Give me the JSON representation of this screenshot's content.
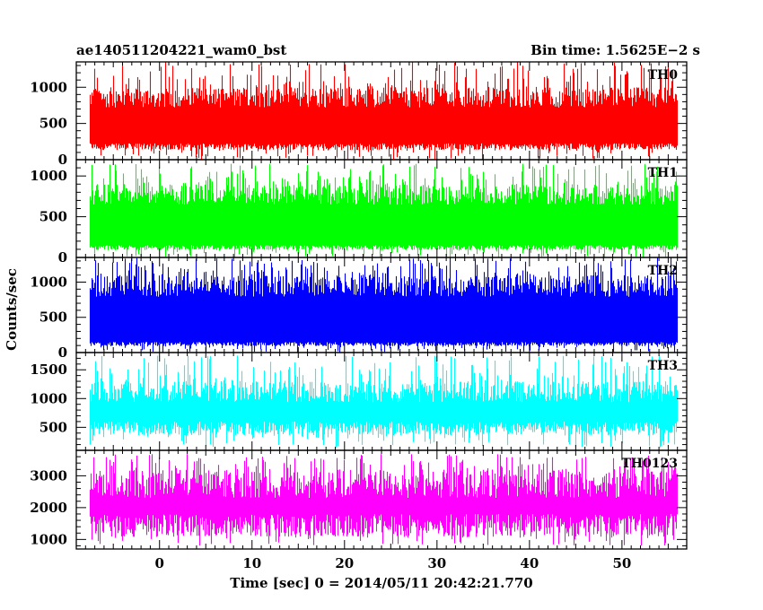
{
  "header": {
    "left_title": "ae140511204221_wam0_bst",
    "right_title": "Bin time: 1.5625E−2 s"
  },
  "axes": {
    "ylabel": "Counts/sec",
    "xlabel": "Time [sec] 0 = 2014/05/11 20:42:21.770"
  },
  "chart_data": {
    "type": "line",
    "title": "ae140511204221_wam0_bst",
    "subtitle": "Bin time: 1.5625E−2 s",
    "xlabel": "Time [sec] 0 = 2014/05/11 20:42:21.770",
    "ylabel": "Counts/sec",
    "xlim": [
      -9,
      57
    ],
    "x_data_range": [
      -7.5,
      56
    ],
    "x_ticks": [
      0,
      10,
      20,
      30,
      40,
      50
    ],
    "x_tick_labels": [
      "0",
      "10",
      "20",
      "30",
      "40",
      "50"
    ],
    "bin_time": 0.015625,
    "grid": false,
    "panels": [
      {
        "name": "TH0",
        "color": "#ff0000",
        "ylim": [
          0,
          1350
        ],
        "y_ticks": [
          0,
          500,
          1000
        ],
        "y_tick_labels": [
          "0",
          "500",
          "1000"
        ],
        "typical_max": 1000,
        "typical_min": 150,
        "peak_max": 1350,
        "floor_min": 0
      },
      {
        "name": "TH1",
        "color": "#00ff00",
        "ylim": [
          0,
          1200
        ],
        "y_ticks": [
          0,
          500,
          1000
        ],
        "y_tick_labels": [
          "0",
          "500",
          "1000"
        ],
        "typical_max": 900,
        "typical_min": 100,
        "peak_max": 1150,
        "floor_min": 0
      },
      {
        "name": "TH2",
        "color": "#0000ff",
        "ylim": [
          0,
          1350
        ],
        "y_ticks": [
          0,
          500,
          1000
        ],
        "y_tick_labels": [
          "0",
          "500",
          "1000"
        ],
        "typical_max": 1100,
        "typical_min": 100,
        "peak_max": 1350,
        "floor_min": 0
      },
      {
        "name": "TH3",
        "color": "#00ffff",
        "ylim": [
          100,
          1800
        ],
        "y_ticks": [
          500,
          1000,
          1500
        ],
        "y_tick_labels": [
          "500",
          "1000",
          "1500"
        ],
        "typical_max": 1300,
        "typical_min": 400,
        "peak_max": 1750,
        "floor_min": 150
      },
      {
        "name": "TH0123",
        "color": "#ff00ff",
        "ylim": [
          700,
          3800
        ],
        "y_ticks": [
          1000,
          2000,
          3000
        ],
        "y_tick_labels": [
          "1000",
          "2000",
          "3000"
        ],
        "typical_max": 3200,
        "typical_min": 1200,
        "peak_max": 3700,
        "floor_min": 800
      }
    ]
  }
}
